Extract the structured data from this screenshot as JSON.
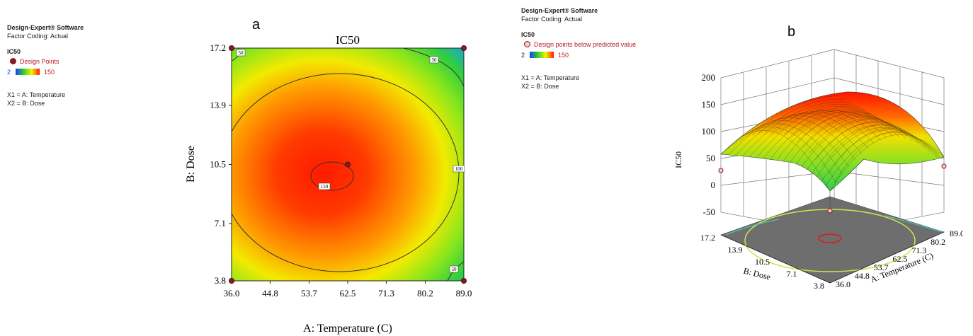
{
  "panel_a": {
    "letter": "a",
    "info": {
      "software": "Design-Expert® Software",
      "coding": "Factor Coding: Actual",
      "response": "IC50",
      "points_label": "Design Points",
      "scale_min": "2",
      "scale_max": "150",
      "x1": "X1 = A: Temperature",
      "x2": "X2 = B: Dose"
    }
  },
  "panel_b": {
    "letter": "b",
    "info": {
      "software": "Design-Expert® Software",
      "coding": "Factor Coding: Actual",
      "response": "IC50",
      "points_label": "Design points below predicted value",
      "scale_min": "2",
      "scale_max": "150",
      "x1": "X1 = A: Temperature",
      "x2": "X2 = B: Dose"
    }
  },
  "chart_data": [
    {
      "type": "heatmap",
      "title": "IC50",
      "xlabel": "A: Temperature (C)",
      "ylabel": "B: Dose",
      "x_ticks": [
        "36.0",
        "44.8",
        "53.7",
        "62.5",
        "71.3",
        "80.2",
        "89.0"
      ],
      "y_ticks": [
        "3.8",
        "7.1",
        "10.5",
        "13.9",
        "17.2"
      ],
      "xlim": [
        36.0,
        89.0
      ],
      "ylim": [
        3.8,
        17.2
      ],
      "contour_labels": [
        "50",
        "50",
        "100",
        "150",
        "50"
      ],
      "color_scale": {
        "min": 2,
        "max": 150,
        "colors": [
          "#1a3cff",
          "#2ecf2e",
          "#f5f500",
          "#ff1a00"
        ]
      },
      "design_points": [
        {
          "x": 36.0,
          "y": 17.2
        },
        {
          "x": 89.0,
          "y": 17.2
        },
        {
          "x": 36.0,
          "y": 3.8
        },
        {
          "x": 89.0,
          "y": 3.8
        },
        {
          "x": 62.5,
          "y": 10.5
        }
      ]
    },
    {
      "type": "surface3d",
      "zlabel": "IC50",
      "xlabel": "A: Temperature (C)",
      "ylabel": "B: Dose",
      "z_ticks": [
        "200",
        "150",
        "100",
        "50",
        "0",
        "-50"
      ],
      "x_ticks": [
        "89.0",
        "80.2",
        "71.3",
        "62.5",
        "53.7",
        "44.8",
        "36.0"
      ],
      "y_ticks": [
        "17.2",
        "13.9",
        "10.5",
        "7.1",
        "3.8"
      ],
      "zlim": [
        -50,
        200
      ]
    }
  ]
}
